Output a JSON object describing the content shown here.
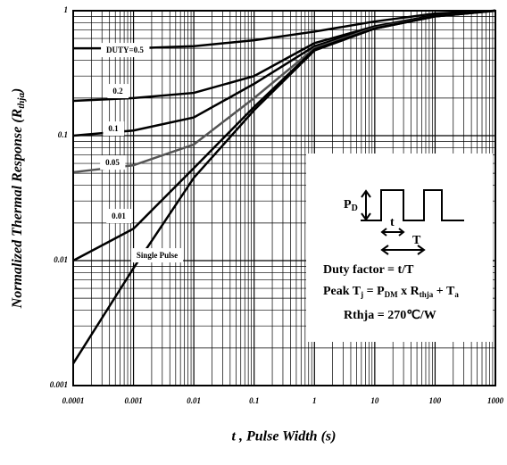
{
  "chart_data": {
    "type": "line",
    "x_label": "t , Pulse Width (s)",
    "y_label": [
      "Normalized Thermal Response (R",
      "thja",
      ")"
    ],
    "log_x": true,
    "log_y": true,
    "grid": true,
    "xlim": [
      0.0001,
      1000
    ],
    "ylim": [
      0.001,
      1
    ],
    "xticks": [
      0.0001,
      0.001,
      0.01,
      0.1,
      1,
      10,
      100,
      1000
    ],
    "yticks": [
      0.001,
      0.01,
      0.1,
      1
    ],
    "x": [
      0.0001,
      0.001,
      0.01,
      0.1,
      1,
      10,
      100,
      1000
    ],
    "series": [
      {
        "name": "DUTY=0.5",
        "color": "#000000",
        "values": [
          0.5,
          0.5,
          0.52,
          0.58,
          0.68,
          0.82,
          0.95,
          1
        ]
      },
      {
        "name": "0.2",
        "color": "#000000",
        "values": [
          0.19,
          0.2,
          0.22,
          0.3,
          0.55,
          0.75,
          0.92,
          1
        ]
      },
      {
        "name": "0.1",
        "color": "#000000",
        "values": [
          0.1,
          0.11,
          0.14,
          0.26,
          0.52,
          0.74,
          0.91,
          1
        ]
      },
      {
        "name": "0.05",
        "color": "#555555",
        "values": [
          0.051,
          0.058,
          0.085,
          0.2,
          0.5,
          0.73,
          0.9,
          1
        ]
      },
      {
        "name": "0.01",
        "color": "#000000",
        "values": [
          0.01,
          0.018,
          0.055,
          0.17,
          0.49,
          0.72,
          0.9,
          1
        ]
      },
      {
        "name": "Single Pulse",
        "color": "#000000",
        "values": [
          0.0015,
          0.0087,
          0.046,
          0.16,
          0.48,
          0.72,
          0.9,
          1
        ]
      }
    ],
    "inset": {
      "pd": [
        "P",
        "D"
      ],
      "t": "t",
      "T": "T",
      "duty": "Duty factor = t/T",
      "peak": [
        "Peak T",
        "j",
        " = P",
        "DM",
        " x R",
        "thja",
        " + T",
        "a"
      ],
      "rthja": "Rthja = 270℃/W"
    }
  }
}
